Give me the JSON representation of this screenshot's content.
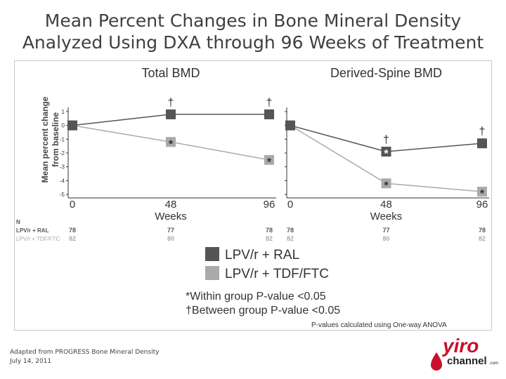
{
  "slide": {
    "title_line1": "Mean Percent Changes in Bone Mineral Density",
    "title_line2": "Analyzed Using DXA through 96 Weeks of Treatment",
    "footnote_line1": "Adapted from PROGRESS Bone Mineral Density",
    "footnote_line2": "July 14, 2011",
    "logo_word1": "yiro",
    "logo_word2": "channel",
    "logo_suffix": ".com",
    "logo_color": "#c8102e"
  },
  "figure": {
    "ylabel_line1": "Mean percent change",
    "ylabel_line2": "from baseline",
    "n_header": "N",
    "legend": [
      {
        "label": "LPV/r + RAL",
        "color": "#555555"
      },
      {
        "label": "LPV/r + TDF/FTC",
        "color": "#aaaaaa"
      }
    ],
    "notes": {
      "within": "*Within group P-value <0.05",
      "between": "†Between group P-value <0.05",
      "anova": "P-values calculated using One-way ANOVA"
    }
  },
  "chart_data": [
    {
      "type": "line",
      "title": "Total BMD",
      "xlabel": "Weeks",
      "ylabel": "Mean percent change from baseline",
      "x": [
        0,
        48,
        96
      ],
      "xticks": [
        "0",
        "48",
        "96"
      ],
      "ylim": [
        -5,
        1
      ],
      "yticks": [
        "1",
        "0",
        "-1",
        "-2",
        "-3",
        "-4",
        "-5"
      ],
      "series": [
        {
          "name": "LPV/r + RAL",
          "color": "#555555",
          "values": [
            0,
            0.8,
            0.8
          ],
          "markers": [
            "",
            "†",
            "†"
          ]
        },
        {
          "name": "LPV/r + TDF/FTC",
          "color": "#aaaaaa",
          "values": [
            0,
            -1.2,
            -2.5
          ],
          "markers": [
            "",
            "*",
            "*"
          ]
        }
      ],
      "n": [
        {
          "series": "LPV/r + RAL",
          "values": [
            "78",
            "77",
            "78"
          ]
        },
        {
          "series": "LPV/r + TDF/FTC",
          "values": [
            "82",
            "80",
            "82"
          ]
        }
      ]
    },
    {
      "type": "line",
      "title": "Derived-Spine BMD",
      "xlabel": "Weeks",
      "x": [
        0,
        48,
        96
      ],
      "xticks": [
        "0",
        "48",
        "96"
      ],
      "ylim": [
        -5,
        1
      ],
      "series": [
        {
          "name": "LPV/r + RAL",
          "color": "#555555",
          "values": [
            0,
            -1.9,
            -1.3
          ],
          "markers": [
            "",
            "†*",
            "†"
          ]
        },
        {
          "name": "LPV/r + TDF/FTC",
          "color": "#aaaaaa",
          "values": [
            0,
            -4.2,
            -4.8
          ],
          "markers": [
            "",
            "*",
            "*"
          ]
        }
      ],
      "n": [
        {
          "series": "LPV/r + RAL",
          "values": [
            "78",
            "77",
            "78"
          ]
        },
        {
          "series": "LPV/r + TDF/FTC",
          "values": [
            "82",
            "80",
            "82"
          ]
        }
      ]
    }
  ]
}
